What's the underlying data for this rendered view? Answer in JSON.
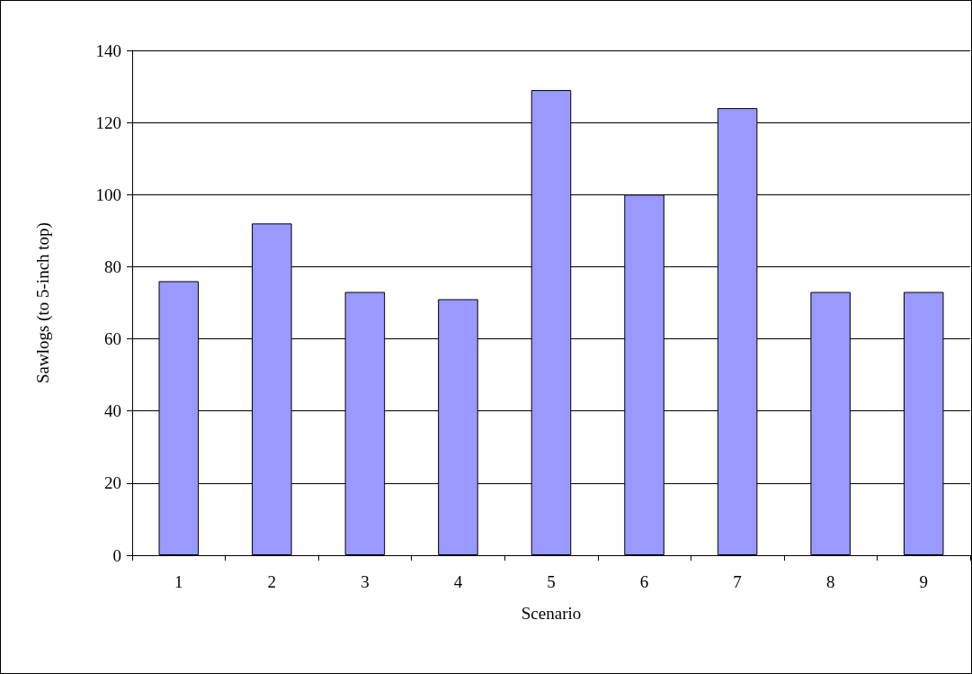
{
  "chart_data": {
    "type": "bar",
    "xlabel": "Scenario",
    "ylabel": "Sawlogs (to 5-inch top)",
    "categories": [
      "1",
      "2",
      "3",
      "4",
      "5",
      "6",
      "7",
      "8",
      "9"
    ],
    "values": [
      76,
      92,
      73,
      71,
      129,
      100,
      124,
      73,
      73
    ],
    "color": "#9999ff",
    "ylim": [
      0,
      140
    ],
    "yticks": [
      0,
      20,
      40,
      60,
      80,
      100,
      120,
      140
    ],
    "grid": "y"
  }
}
